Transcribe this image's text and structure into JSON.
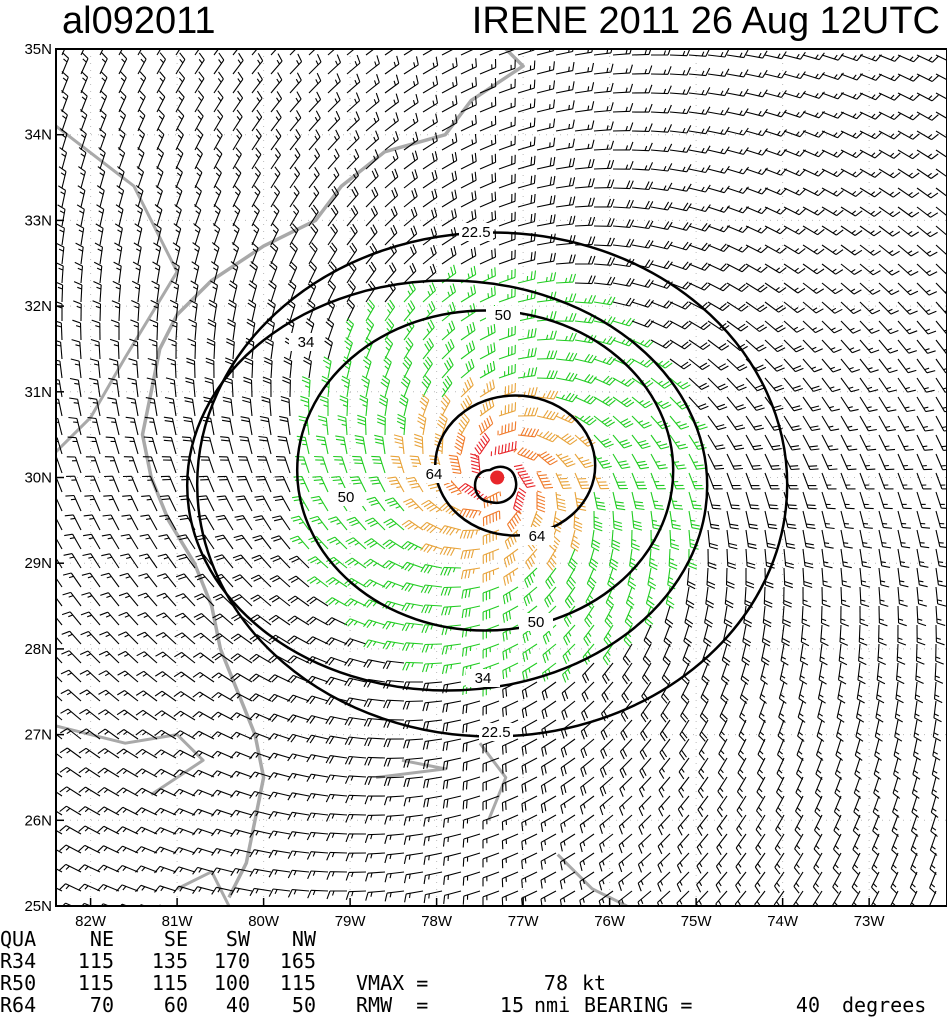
{
  "header": {
    "storm_id": "al092011",
    "storm_title": "IRENE 2011 26 Aug 12UTC"
  },
  "map": {
    "lon_range": [
      -82.4,
      -72.1
    ],
    "lat_range": [
      25,
      35
    ],
    "lat_ticks": [
      "25N",
      "26N",
      "27N",
      "28N",
      "29N",
      "30N",
      "31N",
      "32N",
      "33N",
      "34N",
      "35N"
    ],
    "lon_ticks": [
      "82W",
      "81W",
      "80W",
      "79W",
      "78W",
      "77W",
      "76W",
      "75W",
      "74W",
      "73W"
    ],
    "storm_center": {
      "lon": -77.3,
      "lat": 30.0
    },
    "center_marker_color": "#e8262a",
    "coastline_color": "#a9a9a9",
    "barb_colors": {
      "below_22_5": "#000000",
      "22_5_to_34": "#22cc22",
      "34_to_50": "#e8a33a",
      "50_to_64": "#f07a2a",
      "above_64": "#e8262a"
    },
    "contours": [
      {
        "label": "22.5",
        "radius_nmi": 175
      },
      {
        "label": "34",
        "radius_nmi": 140
      },
      {
        "label": "50",
        "radius_nmi": 105
      },
      {
        "label": "64",
        "radius_nmi": 55
      }
    ]
  },
  "info_table": {
    "header_row": [
      "QUA",
      "NE",
      "SE",
      "SW",
      "NW"
    ],
    "rows": [
      {
        "label": "R34",
        "values": [
          "115",
          "135",
          "170",
          "165"
        ]
      },
      {
        "label": "R50",
        "values": [
          "115",
          "115",
          "100",
          "115"
        ]
      },
      {
        "label": "R64",
        "values": [
          "70",
          "60",
          "40",
          "50"
        ]
      }
    ],
    "vmax_label": "VMAX =",
    "vmax_value": "78",
    "vmax_unit": "kt",
    "rmw_label": "RMW  =",
    "rmw_value": "15",
    "rmw_unit": "nmi",
    "bearing_label": "BEARING =",
    "bearing_value": "40",
    "bearing_unit": "degrees"
  }
}
